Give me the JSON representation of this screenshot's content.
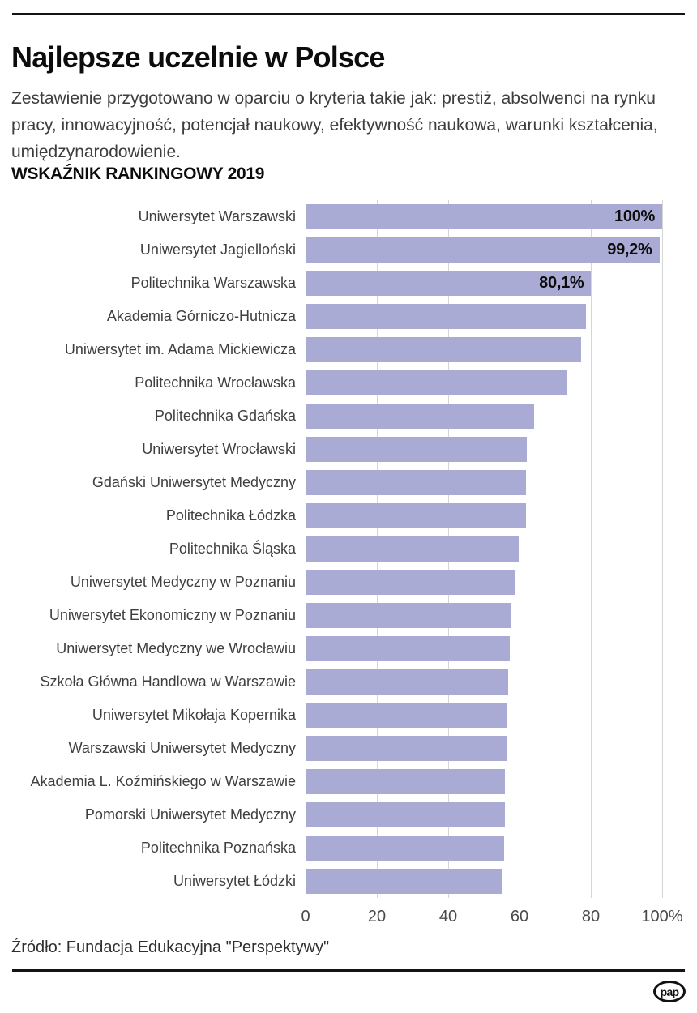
{
  "header": {
    "title": "Najlepsze uczelnie w Polsce",
    "description": "Zestawienie przygotowano w oparciu o kryteria takie jak: prestiż, absolwenci na rynku pracy, innowacyjność, potencjał naukowy, efektywność naukowa, warunki kształcenia, umiędzynarodowienie.",
    "section_label": "WSKAŹNIK RANKINGOWY 2019"
  },
  "chart_data": {
    "type": "bar",
    "orientation": "horizontal",
    "title": "WSKAŹNIK RANKINGOWY 2019",
    "categories": [
      "Uniwersytet Warszawski",
      "Uniwersytet Jagielloński",
      "Politechnika Warszawska",
      "Akademia Górniczo-Hutnicza",
      "Uniwersytet im. Adama Mickiewicza",
      "Politechnika Wrocławska",
      "Politechnika Gdańska",
      "Uniwersytet Wrocławski",
      "Gdański Uniwersytet Medyczny",
      "Politechnika Łódzka",
      "Politechnika Śląska",
      "Uniwersytet Medyczny w Poznaniu",
      "Uniwersytet Ekonomiczny w Poznaniu",
      "Uniwersytet Medyczny we Wrocławiu",
      "Szkoła Główna Handlowa w Warszawie",
      "Uniwersytet Mikołaja Kopernika",
      "Warszawski Uniwersytet Medyczny",
      "Akademia L. Koźmińskiego w Warszawie",
      "Pomorski Uniwersytet Medyczny",
      "Politechnika Poznańska",
      "Uniwersytet Łódzki"
    ],
    "values": [
      100,
      99.2,
      80.1,
      78.6,
      77.2,
      73.3,
      64.1,
      62.0,
      61.9,
      61.7,
      59.8,
      58.8,
      57.6,
      57.3,
      56.9,
      56.5,
      56.4,
      56.0,
      55.8,
      55.6,
      55.1
    ],
    "bar_labels": [
      "100%",
      "99,2%",
      "80,1%",
      "",
      "",
      "",
      "",
      "",
      "",
      "",
      "",
      "",
      "",
      "",
      "",
      "",
      "",
      "",
      "",
      "",
      ""
    ],
    "x_ticks": [
      "0",
      "20",
      "40",
      "60",
      "80",
      "100%"
    ],
    "x_tick_values": [
      0,
      20,
      40,
      60,
      80,
      100
    ],
    "xlim": [
      0,
      100
    ],
    "xlabel": "",
    "ylabel": "",
    "grid": true,
    "legend": false,
    "bar_color": "#a9abd4",
    "gridline_color": "#d6d6d6"
  },
  "footer": {
    "source": "Źródło: Fundacja Edukacyjna \"Perspektywy\"",
    "logo": "pap"
  }
}
